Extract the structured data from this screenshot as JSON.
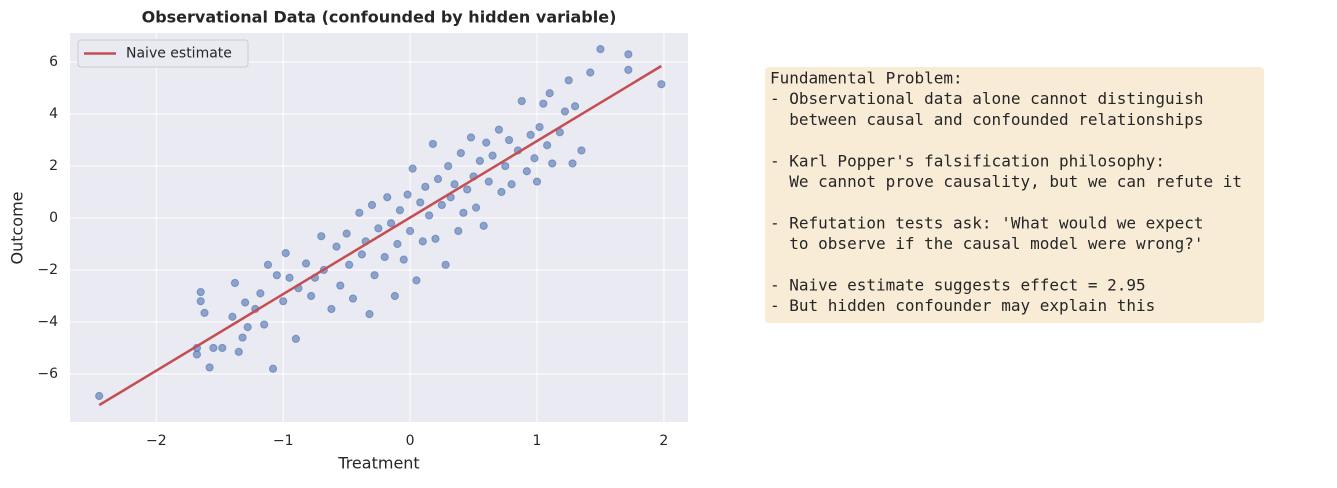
{
  "chart_data": {
    "type": "scatter",
    "title": "Observational Data (confounded by hidden variable)",
    "x_label": "Treatment",
    "y_label": "Outcome",
    "xlim": [
      -2.68,
      2.19
    ],
    "ylim": [
      -7.85,
      7.12
    ],
    "xticks": [
      {
        "value": -2,
        "label": "−2"
      },
      {
        "value": -1,
        "label": "−1"
      },
      0,
      1,
      2
    ],
    "yticks": [
      {
        "value": -6,
        "label": "−6"
      },
      {
        "value": -4,
        "label": "−4"
      },
      {
        "value": -2,
        "label": "−2"
      },
      0,
      2,
      4,
      6
    ],
    "grid": true,
    "legend": "upper left",
    "series": [
      {
        "type": "scatter",
        "color": "#4c72b0",
        "x": [
          -2.45,
          -1.68,
          -1.68,
          -1.65,
          -1.65,
          -1.62,
          -1.58,
          -1.55,
          -1.48,
          -1.4,
          -1.38,
          -1.35,
          -1.32,
          -1.3,
          -1.28,
          -1.22,
          -1.18,
          -1.15,
          -1.12,
          -1.08,
          -1.05,
          -1.0,
          -0.98,
          -0.95,
          -0.9,
          -0.88,
          -0.82,
          -0.78,
          -0.75,
          -0.7,
          -0.68,
          -0.62,
          -0.58,
          -0.55,
          -0.5,
          -0.48,
          -0.45,
          -0.4,
          -0.38,
          -0.35,
          -0.32,
          -0.3,
          -0.28,
          -0.25,
          -0.2,
          -0.18,
          -0.15,
          -0.12,
          -0.1,
          -0.08,
          -0.05,
          -0.02,
          0.0,
          0.02,
          0.05,
          0.08,
          0.1,
          0.12,
          0.15,
          0.18,
          0.2,
          0.22,
          0.25,
          0.28,
          0.3,
          0.32,
          0.35,
          0.38,
          0.4,
          0.42,
          0.45,
          0.48,
          0.5,
          0.52,
          0.55,
          0.58,
          0.6,
          0.62,
          0.65,
          0.7,
          0.72,
          0.75,
          0.78,
          0.8,
          0.85,
          0.88,
          0.92,
          0.95,
          0.98,
          1.0,
          1.02,
          1.05,
          1.08,
          1.1,
          1.12,
          1.18,
          1.22,
          1.25,
          1.28,
          1.3,
          1.35,
          1.42,
          1.5,
          1.72,
          1.72,
          1.98
        ],
        "values": [
          -6.85,
          -5.25,
          -5.0,
          -2.85,
          -3.2,
          -3.65,
          -5.75,
          -5.0,
          -5.0,
          -3.8,
          -2.5,
          -5.15,
          -4.6,
          -3.25,
          -4.2,
          -3.5,
          -2.9,
          -4.1,
          -1.8,
          -5.8,
          -2.2,
          -3.2,
          -1.35,
          -2.3,
          -4.65,
          -2.7,
          -1.75,
          -3.0,
          -2.3,
          -0.7,
          -2.0,
          -3.5,
          -1.1,
          -2.6,
          -0.6,
          -1.8,
          -3.1,
          0.2,
          -1.4,
          -0.9,
          -3.7,
          0.5,
          -2.2,
          -0.4,
          -1.5,
          0.8,
          -0.2,
          -3.0,
          -1.0,
          0.3,
          -1.6,
          0.9,
          -0.5,
          1.9,
          -2.4,
          0.6,
          -0.9,
          1.2,
          0.1,
          2.85,
          -0.8,
          1.5,
          0.5,
          -1.8,
          2.0,
          0.8,
          1.3,
          -0.5,
          2.5,
          0.2,
          1.1,
          3.1,
          1.6,
          0.4,
          2.2,
          -0.3,
          2.9,
          1.4,
          2.4,
          3.4,
          1.0,
          2.0,
          3.0,
          1.3,
          2.6,
          4.5,
          1.8,
          3.2,
          2.3,
          1.4,
          3.5,
          4.4,
          2.8,
          4.8,
          2.1,
          3.3,
          4.1,
          5.3,
          2.1,
          4.3,
          2.6,
          5.6,
          6.5,
          6.3,
          5.7,
          5.15
        ]
      },
      {
        "type": "line",
        "name": "Naive estimate",
        "color": "#c44e52",
        "x": [
          -2.45,
          1.98
        ],
        "values": [
          -7.2,
          5.85
        ]
      }
    ]
  },
  "annotation": {
    "paragraphs": [
      [
        "Fundamental Problem:",
        "- Observational data alone cannot distinguish",
        "  between causal and confounded relationships"
      ],
      [
        "- Karl Popper's falsification philosophy:",
        "  We cannot prove causality, but we can refute it"
      ],
      [
        "- Refutation tests ask: 'What would we expect",
        "  to observe if the causal model were wrong?'"
      ],
      [
        "- Naive estimate suggests effect = 2.95",
        "- But hidden confounder may explain this"
      ]
    ]
  }
}
